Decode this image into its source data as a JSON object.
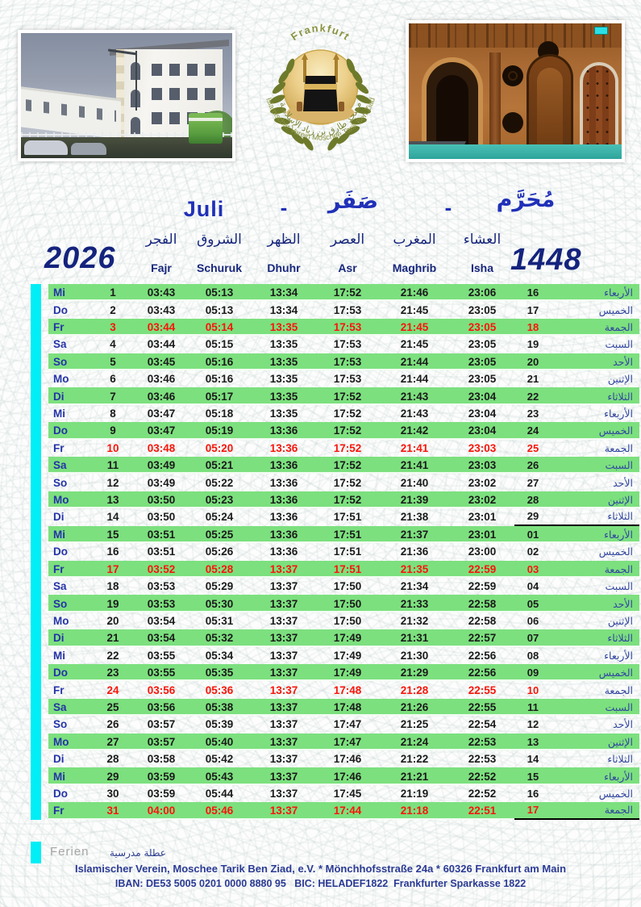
{
  "page": {
    "title_month_latin": "Juli",
    "title_separator": "-",
    "title_month_hijri_second": "صَفَر",
    "title_month_hijri_first": "مُحَرَّم",
    "year_gregorian": "2026",
    "year_hijri": "1448"
  },
  "logo": {
    "city": "Frankfurt",
    "organization_arc": "Islamischer Verein Moschee Tarik Ben Ziad",
    "arabic": "مسجد طارق بن زياد الإسلامية"
  },
  "table": {
    "columns": [
      {
        "arabic": "الفجر",
        "latin": "Fajr"
      },
      {
        "arabic": "الشروق",
        "latin": "Schuruk"
      },
      {
        "arabic": "الظهر",
        "latin": "Dhuhr"
      },
      {
        "arabic": "العصر",
        "latin": "Asr"
      },
      {
        "arabic": "المغرب",
        "latin": "Maghrib"
      },
      {
        "arabic": "العشاء",
        "latin": "Isha"
      }
    ],
    "rows": [
      {
        "day": "Mi",
        "date": "1",
        "fajr": "03:43",
        "schuruk": "05:13",
        "dhuhr": "13:34",
        "asr": "17:52",
        "maghrib": "21:46",
        "isha": "23:06",
        "hijri": "16",
        "day_ar": "الأربعاء",
        "friday": false,
        "month_divider": false
      },
      {
        "day": "Do",
        "date": "2",
        "fajr": "03:43",
        "schuruk": "05:13",
        "dhuhr": "13:34",
        "asr": "17:53",
        "maghrib": "21:45",
        "isha": "23:05",
        "hijri": "17",
        "day_ar": "الخميس",
        "friday": false,
        "month_divider": false
      },
      {
        "day": "Fr",
        "date": "3",
        "fajr": "03:44",
        "schuruk": "05:14",
        "dhuhr": "13:35",
        "asr": "17:53",
        "maghrib": "21:45",
        "isha": "23:05",
        "hijri": "18",
        "day_ar": "الجمعة",
        "friday": true,
        "month_divider": false
      },
      {
        "day": "Sa",
        "date": "4",
        "fajr": "03:44",
        "schuruk": "05:15",
        "dhuhr": "13:35",
        "asr": "17:53",
        "maghrib": "21:45",
        "isha": "23:05",
        "hijri": "19",
        "day_ar": "السبت",
        "friday": false,
        "month_divider": false
      },
      {
        "day": "So",
        "date": "5",
        "fajr": "03:45",
        "schuruk": "05:16",
        "dhuhr": "13:35",
        "asr": "17:53",
        "maghrib": "21:44",
        "isha": "23:05",
        "hijri": "20",
        "day_ar": "الأحد",
        "friday": false,
        "month_divider": false
      },
      {
        "day": "Mo",
        "date": "6",
        "fajr": "03:46",
        "schuruk": "05:16",
        "dhuhr": "13:35",
        "asr": "17:53",
        "maghrib": "21:44",
        "isha": "23:05",
        "hijri": "21",
        "day_ar": "الإثنين",
        "friday": false,
        "month_divider": false
      },
      {
        "day": "Di",
        "date": "7",
        "fajr": "03:46",
        "schuruk": "05:17",
        "dhuhr": "13:35",
        "asr": "17:52",
        "maghrib": "21:43",
        "isha": "23:04",
        "hijri": "22",
        "day_ar": "الثلاثاء",
        "friday": false,
        "month_divider": false
      },
      {
        "day": "Mi",
        "date": "8",
        "fajr": "03:47",
        "schuruk": "05:18",
        "dhuhr": "13:35",
        "asr": "17:52",
        "maghrib": "21:43",
        "isha": "23:04",
        "hijri": "23",
        "day_ar": "الأربعاء",
        "friday": false,
        "month_divider": false
      },
      {
        "day": "Do",
        "date": "9",
        "fajr": "03:47",
        "schuruk": "05:19",
        "dhuhr": "13:36",
        "asr": "17:52",
        "maghrib": "21:42",
        "isha": "23:04",
        "hijri": "24",
        "day_ar": "الخميس",
        "friday": false,
        "month_divider": false
      },
      {
        "day": "Fr",
        "date": "10",
        "fajr": "03:48",
        "schuruk": "05:20",
        "dhuhr": "13:36",
        "asr": "17:52",
        "maghrib": "21:41",
        "isha": "23:03",
        "hijri": "25",
        "day_ar": "الجمعة",
        "friday": true,
        "month_divider": false
      },
      {
        "day": "Sa",
        "date": "11",
        "fajr": "03:49",
        "schuruk": "05:21",
        "dhuhr": "13:36",
        "asr": "17:52",
        "maghrib": "21:41",
        "isha": "23:03",
        "hijri": "26",
        "day_ar": "السبت",
        "friday": false,
        "month_divider": false
      },
      {
        "day": "So",
        "date": "12",
        "fajr": "03:49",
        "schuruk": "05:22",
        "dhuhr": "13:36",
        "asr": "17:52",
        "maghrib": "21:40",
        "isha": "23:02",
        "hijri": "27",
        "day_ar": "الأحد",
        "friday": false,
        "month_divider": false
      },
      {
        "day": "Mo",
        "date": "13",
        "fajr": "03:50",
        "schuruk": "05:23",
        "dhuhr": "13:36",
        "asr": "17:52",
        "maghrib": "21:39",
        "isha": "23:02",
        "hijri": "28",
        "day_ar": "الإثنين",
        "friday": false,
        "month_divider": false
      },
      {
        "day": "Di",
        "date": "14",
        "fajr": "03:50",
        "schuruk": "05:24",
        "dhuhr": "13:36",
        "asr": "17:51",
        "maghrib": "21:38",
        "isha": "23:01",
        "hijri": "29",
        "day_ar": "الثلاثاء",
        "friday": false,
        "month_divider": true
      },
      {
        "day": "Mi",
        "date": "15",
        "fajr": "03:51",
        "schuruk": "05:25",
        "dhuhr": "13:36",
        "asr": "17:51",
        "maghrib": "21:37",
        "isha": "23:01",
        "hijri": "01",
        "day_ar": "الأربعاء",
        "friday": false,
        "month_divider": false
      },
      {
        "day": "Do",
        "date": "16",
        "fajr": "03:51",
        "schuruk": "05:26",
        "dhuhr": "13:36",
        "asr": "17:51",
        "maghrib": "21:36",
        "isha": "23:00",
        "hijri": "02",
        "day_ar": "الخميس",
        "friday": false,
        "month_divider": false
      },
      {
        "day": "Fr",
        "date": "17",
        "fajr": "03:52",
        "schuruk": "05:28",
        "dhuhr": "13:37",
        "asr": "17:51",
        "maghrib": "21:35",
        "isha": "22:59",
        "hijri": "03",
        "day_ar": "الجمعة",
        "friday": true,
        "month_divider": false
      },
      {
        "day": "Sa",
        "date": "18",
        "fajr": "03:53",
        "schuruk": "05:29",
        "dhuhr": "13:37",
        "asr": "17:50",
        "maghrib": "21:34",
        "isha": "22:59",
        "hijri": "04",
        "day_ar": "السبت",
        "friday": false,
        "month_divider": false
      },
      {
        "day": "So",
        "date": "19",
        "fajr": "03:53",
        "schuruk": "05:30",
        "dhuhr": "13:37",
        "asr": "17:50",
        "maghrib": "21:33",
        "isha": "22:58",
        "hijri": "05",
        "day_ar": "الأحد",
        "friday": false,
        "month_divider": false
      },
      {
        "day": "Mo",
        "date": "20",
        "fajr": "03:54",
        "schuruk": "05:31",
        "dhuhr": "13:37",
        "asr": "17:50",
        "maghrib": "21:32",
        "isha": "22:58",
        "hijri": "06",
        "day_ar": "الإثنين",
        "friday": false,
        "month_divider": false
      },
      {
        "day": "Di",
        "date": "21",
        "fajr": "03:54",
        "schuruk": "05:32",
        "dhuhr": "13:37",
        "asr": "17:49",
        "maghrib": "21:31",
        "isha": "22:57",
        "hijri": "07",
        "day_ar": "الثلاثاء",
        "friday": false,
        "month_divider": false
      },
      {
        "day": "Mi",
        "date": "22",
        "fajr": "03:55",
        "schuruk": "05:34",
        "dhuhr": "13:37",
        "asr": "17:49",
        "maghrib": "21:30",
        "isha": "22:56",
        "hijri": "08",
        "day_ar": "الأربعاء",
        "friday": false,
        "month_divider": false
      },
      {
        "day": "Do",
        "date": "23",
        "fajr": "03:55",
        "schuruk": "05:35",
        "dhuhr": "13:37",
        "asr": "17:49",
        "maghrib": "21:29",
        "isha": "22:56",
        "hijri": "09",
        "day_ar": "الخميس",
        "friday": false,
        "month_divider": false
      },
      {
        "day": "Fr",
        "date": "24",
        "fajr": "03:56",
        "schuruk": "05:36",
        "dhuhr": "13:37",
        "asr": "17:48",
        "maghrib": "21:28",
        "isha": "22:55",
        "hijri": "10",
        "day_ar": "الجمعة",
        "friday": true,
        "month_divider": false
      },
      {
        "day": "Sa",
        "date": "25",
        "fajr": "03:56",
        "schuruk": "05:38",
        "dhuhr": "13:37",
        "asr": "17:48",
        "maghrib": "21:26",
        "isha": "22:55",
        "hijri": "11",
        "day_ar": "السبت",
        "friday": false,
        "month_divider": false
      },
      {
        "day": "So",
        "date": "26",
        "fajr": "03:57",
        "schuruk": "05:39",
        "dhuhr": "13:37",
        "asr": "17:47",
        "maghrib": "21:25",
        "isha": "22:54",
        "hijri": "12",
        "day_ar": "الأحد",
        "friday": false,
        "month_divider": false
      },
      {
        "day": "Mo",
        "date": "27",
        "fajr": "03:57",
        "schuruk": "05:40",
        "dhuhr": "13:37",
        "asr": "17:47",
        "maghrib": "21:24",
        "isha": "22:53",
        "hijri": "13",
        "day_ar": "الإثنين",
        "friday": false,
        "month_divider": false
      },
      {
        "day": "Di",
        "date": "28",
        "fajr": "03:58",
        "schuruk": "05:42",
        "dhuhr": "13:37",
        "asr": "17:46",
        "maghrib": "21:22",
        "isha": "22:53",
        "hijri": "14",
        "day_ar": "الثلاثاء",
        "friday": false,
        "month_divider": false
      },
      {
        "day": "Mi",
        "date": "29",
        "fajr": "03:59",
        "schuruk": "05:43",
        "dhuhr": "13:37",
        "asr": "17:46",
        "maghrib": "21:21",
        "isha": "22:52",
        "hijri": "15",
        "day_ar": "الأربعاء",
        "friday": false,
        "month_divider": false
      },
      {
        "day": "Do",
        "date": "30",
        "fajr": "03:59",
        "schuruk": "05:44",
        "dhuhr": "13:37",
        "asr": "17:45",
        "maghrib": "21:19",
        "isha": "22:52",
        "hijri": "16",
        "day_ar": "الخميس",
        "friday": false,
        "month_divider": false
      },
      {
        "day": "Fr",
        "date": "31",
        "fajr": "04:00",
        "schuruk": "05:46",
        "dhuhr": "13:37",
        "asr": "17:44",
        "maghrib": "21:18",
        "isha": "22:51",
        "hijri": "17",
        "day_ar": "الجمعة",
        "friday": true,
        "month_divider": true
      }
    ]
  },
  "legend": {
    "ferien": "Ferien",
    "ferien_arabic": "عطلة مدرسية"
  },
  "footer": {
    "address": "Islamischer Verein, Moschee Tarik Ben Ziad, e.V. * Mönchhofsstraße 24a * 60326 Frankfurt am Main",
    "bank": "IBAN: DE53 5005 0201 0000 8880 95   BIC: HELADEF1822  Frankfurter Sparkasse 1822"
  },
  "colors": {
    "row_green": "#7ce07e",
    "ferien_cyan": "#00eef5",
    "friday_red": "#f9150a",
    "title_blue": "#2030b8",
    "navy": "#1c2a86",
    "time_black": "#1a1a1a",
    "footer_blue": "#2b3a94"
  }
}
